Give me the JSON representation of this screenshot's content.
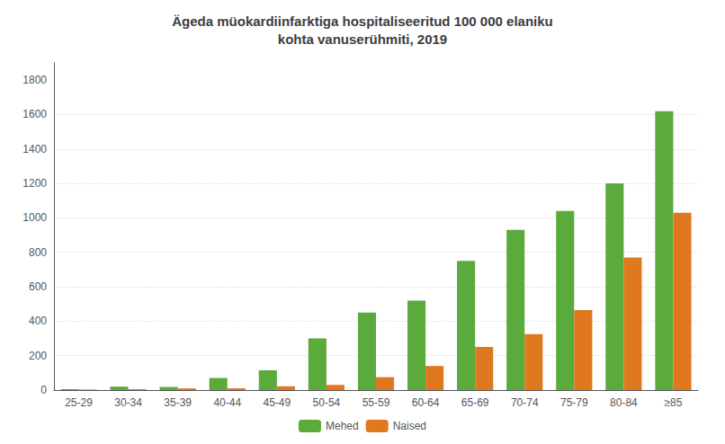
{
  "chart_data": {
    "type": "bar",
    "title": "Ägeda müokardiinfarktiga hospitaliseeritud 100 000 elaniku\nkohta vanuserühmiti, 2019",
    "categories": [
      "25-29",
      "30-34",
      "35-39",
      "40-44",
      "45-49",
      "50-54",
      "55-59",
      "60-64",
      "65-69",
      "70-74",
      "75-79",
      "80-84",
      "≥85"
    ],
    "series": [
      {
        "name": "Mehed",
        "color": "#5aaa3c",
        "values": [
          5,
          20,
          18,
          70,
          115,
          300,
          450,
          520,
          750,
          930,
          1040,
          1200,
          1620
        ]
      },
      {
        "name": "Naised",
        "color": "#e07820",
        "values": [
          3,
          5,
          10,
          10,
          22,
          30,
          75,
          140,
          250,
          325,
          465,
          770,
          1030
        ]
      }
    ],
    "ylim": [
      0,
      1900
    ],
    "yticks": [
      0,
      200,
      400,
      600,
      800,
      1000,
      1200,
      1400,
      1600,
      1800
    ],
    "grid": true,
    "legend": "bottom"
  }
}
